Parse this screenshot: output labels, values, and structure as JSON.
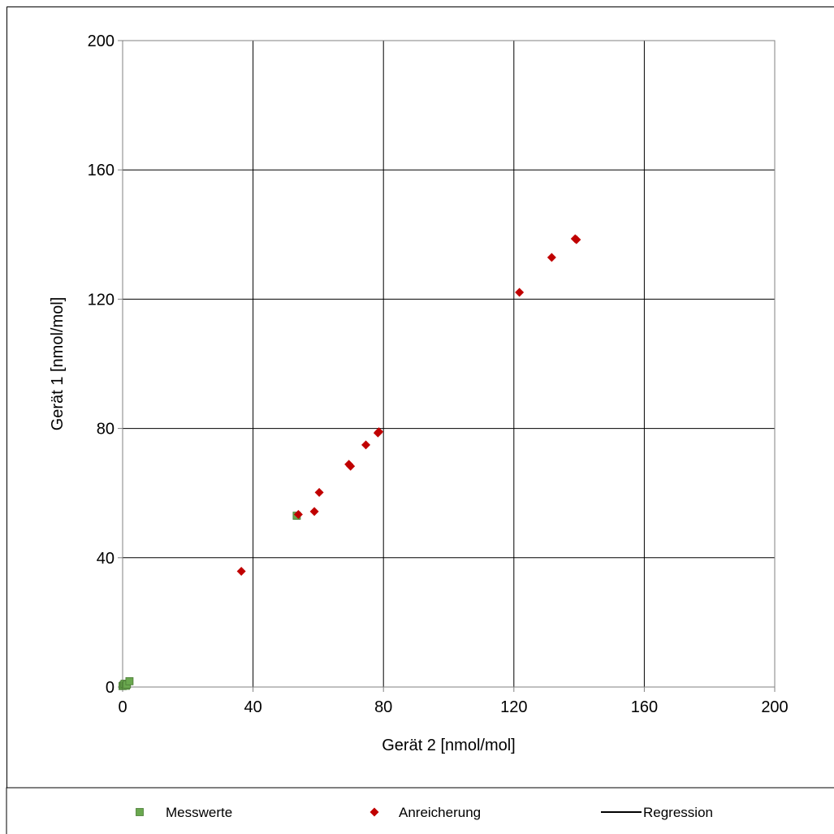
{
  "chart_data": {
    "type": "scatter",
    "title": "",
    "xlabel": "Gerät 2 [nmol/mol]",
    "ylabel": "Gerät 1 [nmol/mol]",
    "xlim": [
      0,
      200
    ],
    "ylim": [
      0,
      200
    ],
    "x_ticks": [
      "0",
      "40",
      "80",
      "120",
      "160",
      "200"
    ],
    "y_ticks": [
      "0",
      "40",
      "80",
      "120",
      "160",
      "200"
    ],
    "grid": true,
    "legend_position": "bottom",
    "series": [
      {
        "name": "Messwerte",
        "marker": "square",
        "color": "#6aa84f",
        "points": [
          {
            "x": 0.0,
            "y": 0.3
          },
          {
            "x": 0.3,
            "y": 0.6
          },
          {
            "x": 0.6,
            "y": 1.0
          },
          {
            "x": 1.0,
            "y": 0.4
          },
          {
            "x": 1.3,
            "y": 0.8
          },
          {
            "x": 2.1,
            "y": 1.8
          },
          {
            "x": 53.4,
            "y": 53.0
          }
        ]
      },
      {
        "name": "Anreicherung",
        "marker": "diamond",
        "color": "#c00000",
        "points": [
          {
            "x": 36.4,
            "y": 35.8
          },
          {
            "x": 53.9,
            "y": 53.4
          },
          {
            "x": 58.8,
            "y": 54.3
          },
          {
            "x": 60.3,
            "y": 60.2
          },
          {
            "x": 69.4,
            "y": 68.9
          },
          {
            "x": 69.9,
            "y": 68.3
          },
          {
            "x": 74.6,
            "y": 74.9
          },
          {
            "x": 78.3,
            "y": 78.6
          },
          {
            "x": 78.6,
            "y": 79.0
          },
          {
            "x": 121.7,
            "y": 122.1
          },
          {
            "x": 131.6,
            "y": 132.9
          },
          {
            "x": 138.8,
            "y": 138.7
          },
          {
            "x": 139.2,
            "y": 138.4
          }
        ]
      },
      {
        "name": "Regression",
        "marker": "line",
        "color": "#000000",
        "points": []
      }
    ]
  }
}
